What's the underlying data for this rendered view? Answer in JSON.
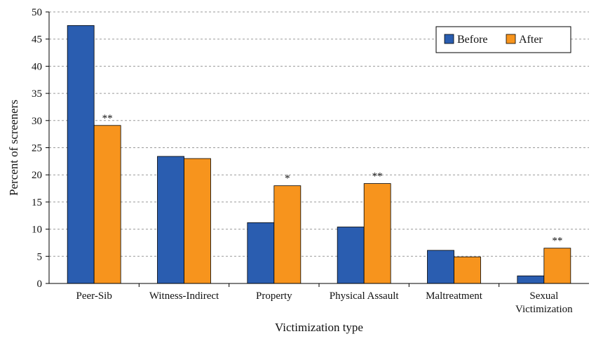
{
  "chart_data": {
    "type": "bar",
    "title": "",
    "xlabel": "Victimization type",
    "ylabel": "Percent of screeners",
    "ylim": [
      0,
      50
    ],
    "yticks": [
      0,
      5,
      10,
      15,
      20,
      25,
      30,
      35,
      40,
      45,
      50
    ],
    "grid": "horizontal dashed",
    "legend_position": "top-right",
    "categories": [
      [
        "Peer-Sib"
      ],
      [
        "Witness-Indirect"
      ],
      [
        "Property"
      ],
      [
        "Physical Assault"
      ],
      [
        "Maltreatment"
      ],
      [
        "Sexual",
        "Victimization"
      ]
    ],
    "series": [
      {
        "name": "Before",
        "color": "#2a5db0",
        "values": [
          47.5,
          23.4,
          11.2,
          10.4,
          6.1,
          1.4
        ]
      },
      {
        "name": "After",
        "color": "#f7941d",
        "values": [
          29.1,
          23.0,
          18.0,
          18.4,
          4.9,
          6.5
        ]
      }
    ],
    "significance": [
      "**",
      "",
      "*",
      "**",
      "",
      "**"
    ]
  }
}
